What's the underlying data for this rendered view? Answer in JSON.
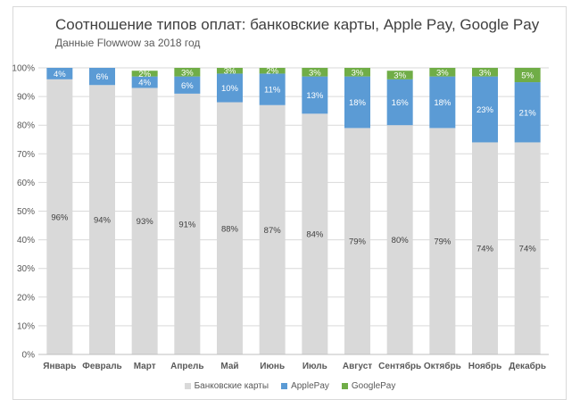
{
  "title": "Соотношение типов оплат: банковские карты, Apple Pay, Google Pay",
  "subtitle": "Данные Flowwow за 2018 год",
  "colors": {
    "cards": "#d9d9d9",
    "applepay": "#5b9bd5",
    "googlepay": "#70ad47",
    "grid": "#d9d9d9",
    "axis_text": "#595959"
  },
  "chart_data": {
    "type": "bar",
    "stacked": true,
    "categories": [
      "Январь",
      "Февраль",
      "Март",
      "Апрель",
      "Май",
      "Июнь",
      "Июль",
      "Август",
      "Сентябрь",
      "Октябрь",
      "Ноябрь",
      "Декабрь"
    ],
    "series": [
      {
        "name": "Банковские карты",
        "values": [
          96,
          94,
          93,
          91,
          88,
          87,
          84,
          79,
          80,
          79,
          74,
          74
        ],
        "labels": [
          "96%",
          "94%",
          "93%",
          "91%",
          "88%",
          "87%",
          "84%",
          "79%",
          "80%",
          "79%",
          "74%",
          "74%"
        ]
      },
      {
        "name": "ApplePay",
        "values": [
          4,
          6,
          4,
          6,
          10,
          11,
          13,
          18,
          16,
          18,
          23,
          21
        ],
        "labels": [
          "4%",
          "6%",
          "4%",
          "6%",
          "10%",
          "11%",
          "13%",
          "18%",
          "16%",
          "18%",
          "23%",
          "21%"
        ]
      },
      {
        "name": "GooglePay",
        "values": [
          0,
          0,
          2,
          3,
          3,
          2,
          3,
          3,
          3,
          3,
          3,
          5
        ],
        "labels": [
          "",
          "",
          "2%",
          "3%",
          "3%",
          "2%",
          "3%",
          "3%",
          "3%",
          "3%",
          "3%",
          "5%"
        ]
      }
    ],
    "ylim": [
      0,
      100
    ],
    "yticks": [
      "0%",
      "10%",
      "20%",
      "30%",
      "40%",
      "50%",
      "60%",
      "70%",
      "80%",
      "90%",
      "100%"
    ],
    "grid": true,
    "legend": "bottom"
  }
}
